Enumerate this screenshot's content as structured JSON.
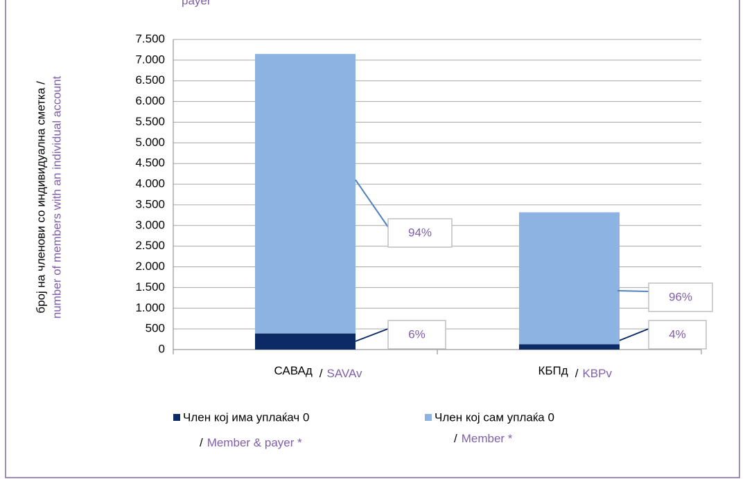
{
  "chart_data": {
    "type": "bar",
    "stacked": true,
    "title": "payer",
    "y_label": "број на членови со индивидуална сметка /",
    "y_label_en": "number of members with an individual account",
    "slash": "/",
    "categories": [
      "САВАд",
      "КБПд"
    ],
    "categories_en": [
      "SAVAv",
      "KBPv"
    ],
    "series": [
      {
        "name": "Член кој има уплаќач 0",
        "name_en": "Member & payer *",
        "color": "#0b2a66",
        "values": [
          390,
          130
        ],
        "labels": [
          "6%",
          "4%"
        ]
      },
      {
        "name": "Член кој сам уплаќа 0",
        "name_en": "Member *",
        "color": "#8db3e2",
        "values": [
          6760,
          3190
        ],
        "labels": [
          "94%",
          "96%"
        ]
      }
    ],
    "ylim": [
      0,
      7500
    ],
    "yticks": [
      0,
      500,
      {
        "value": 1000,
        "label": "1.000"
      },
      {
        "value": 1500,
        "label": "1.500"
      },
      {
        "value": 2000,
        "label": "2.000"
      },
      {
        "value": 2500,
        "label": "2.500"
      },
      {
        "value": 3000,
        "label": "3.000"
      },
      {
        "value": 3500,
        "label": "3.500"
      },
      {
        "value": 4000,
        "label": "4.000"
      },
      {
        "value": 4500,
        "label": "4.500"
      },
      {
        "value": 5000,
        "label": "5.000"
      },
      {
        "value": 5500,
        "label": "5.500"
      },
      {
        "value": 6000,
        "label": "6.000"
      },
      {
        "value": 6500,
        "label": "6.500"
      },
      {
        "value": 7000,
        "label": "7.000"
      },
      {
        "value": 7500,
        "label": "7.500"
      }
    ],
    "grid": true,
    "legend": "bottom"
  }
}
